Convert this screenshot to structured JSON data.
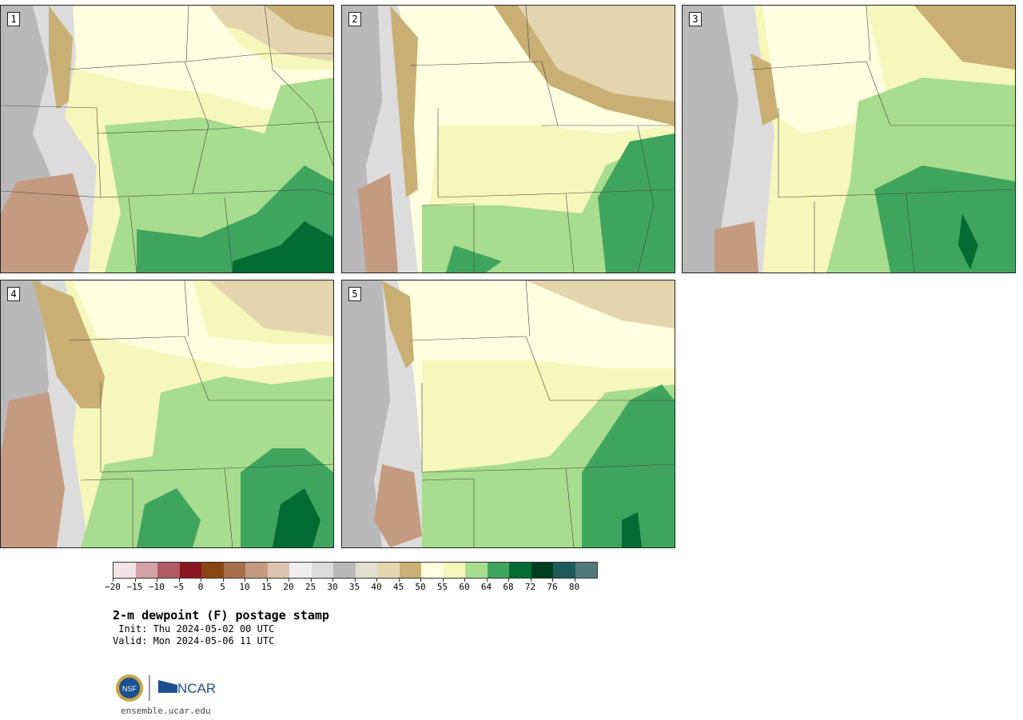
{
  "panels": [
    {
      "id": "p1",
      "label": "1"
    },
    {
      "id": "p2",
      "label": "2"
    },
    {
      "id": "p3",
      "label": "3"
    },
    {
      "id": "p4",
      "label": "4"
    },
    {
      "id": "p5",
      "label": "5"
    }
  ],
  "colorbar": {
    "colors": [
      "#f3e3e6",
      "#d4a1a6",
      "#b05a63",
      "#8a1720",
      "#8b4513",
      "#a86d4a",
      "#c49a80",
      "#dec3b1",
      "#efefef",
      "#dcdcdc",
      "#b9b9b9",
      "#e0e0d1",
      "#e3d5ae",
      "#c9af73",
      "#ffffe0",
      "#f5f7bb",
      "#a8dc8e",
      "#3fa55e",
      "#006b33",
      "#003d20",
      "#1f5a5a",
      "#517a7f"
    ],
    "tick_labels": [
      "−20",
      "−15",
      "−10",
      "−5",
      "0",
      "5",
      "10",
      "15",
      "20",
      "25",
      "30",
      "35",
      "40",
      "45",
      "50",
      "55",
      "60",
      "64",
      "68",
      "72",
      "76",
      "80"
    ]
  },
  "title": "2-m dewpoint (F) postage stamp",
  "init": " Init: Thu 2024-05-02 00 UTC",
  "valid": "Valid: Mon 2024-05-06 11 UTC",
  "logos": {
    "nsf": "NSF",
    "ncar": "NCAR"
  },
  "website": "ensemble.ucar.edu"
}
